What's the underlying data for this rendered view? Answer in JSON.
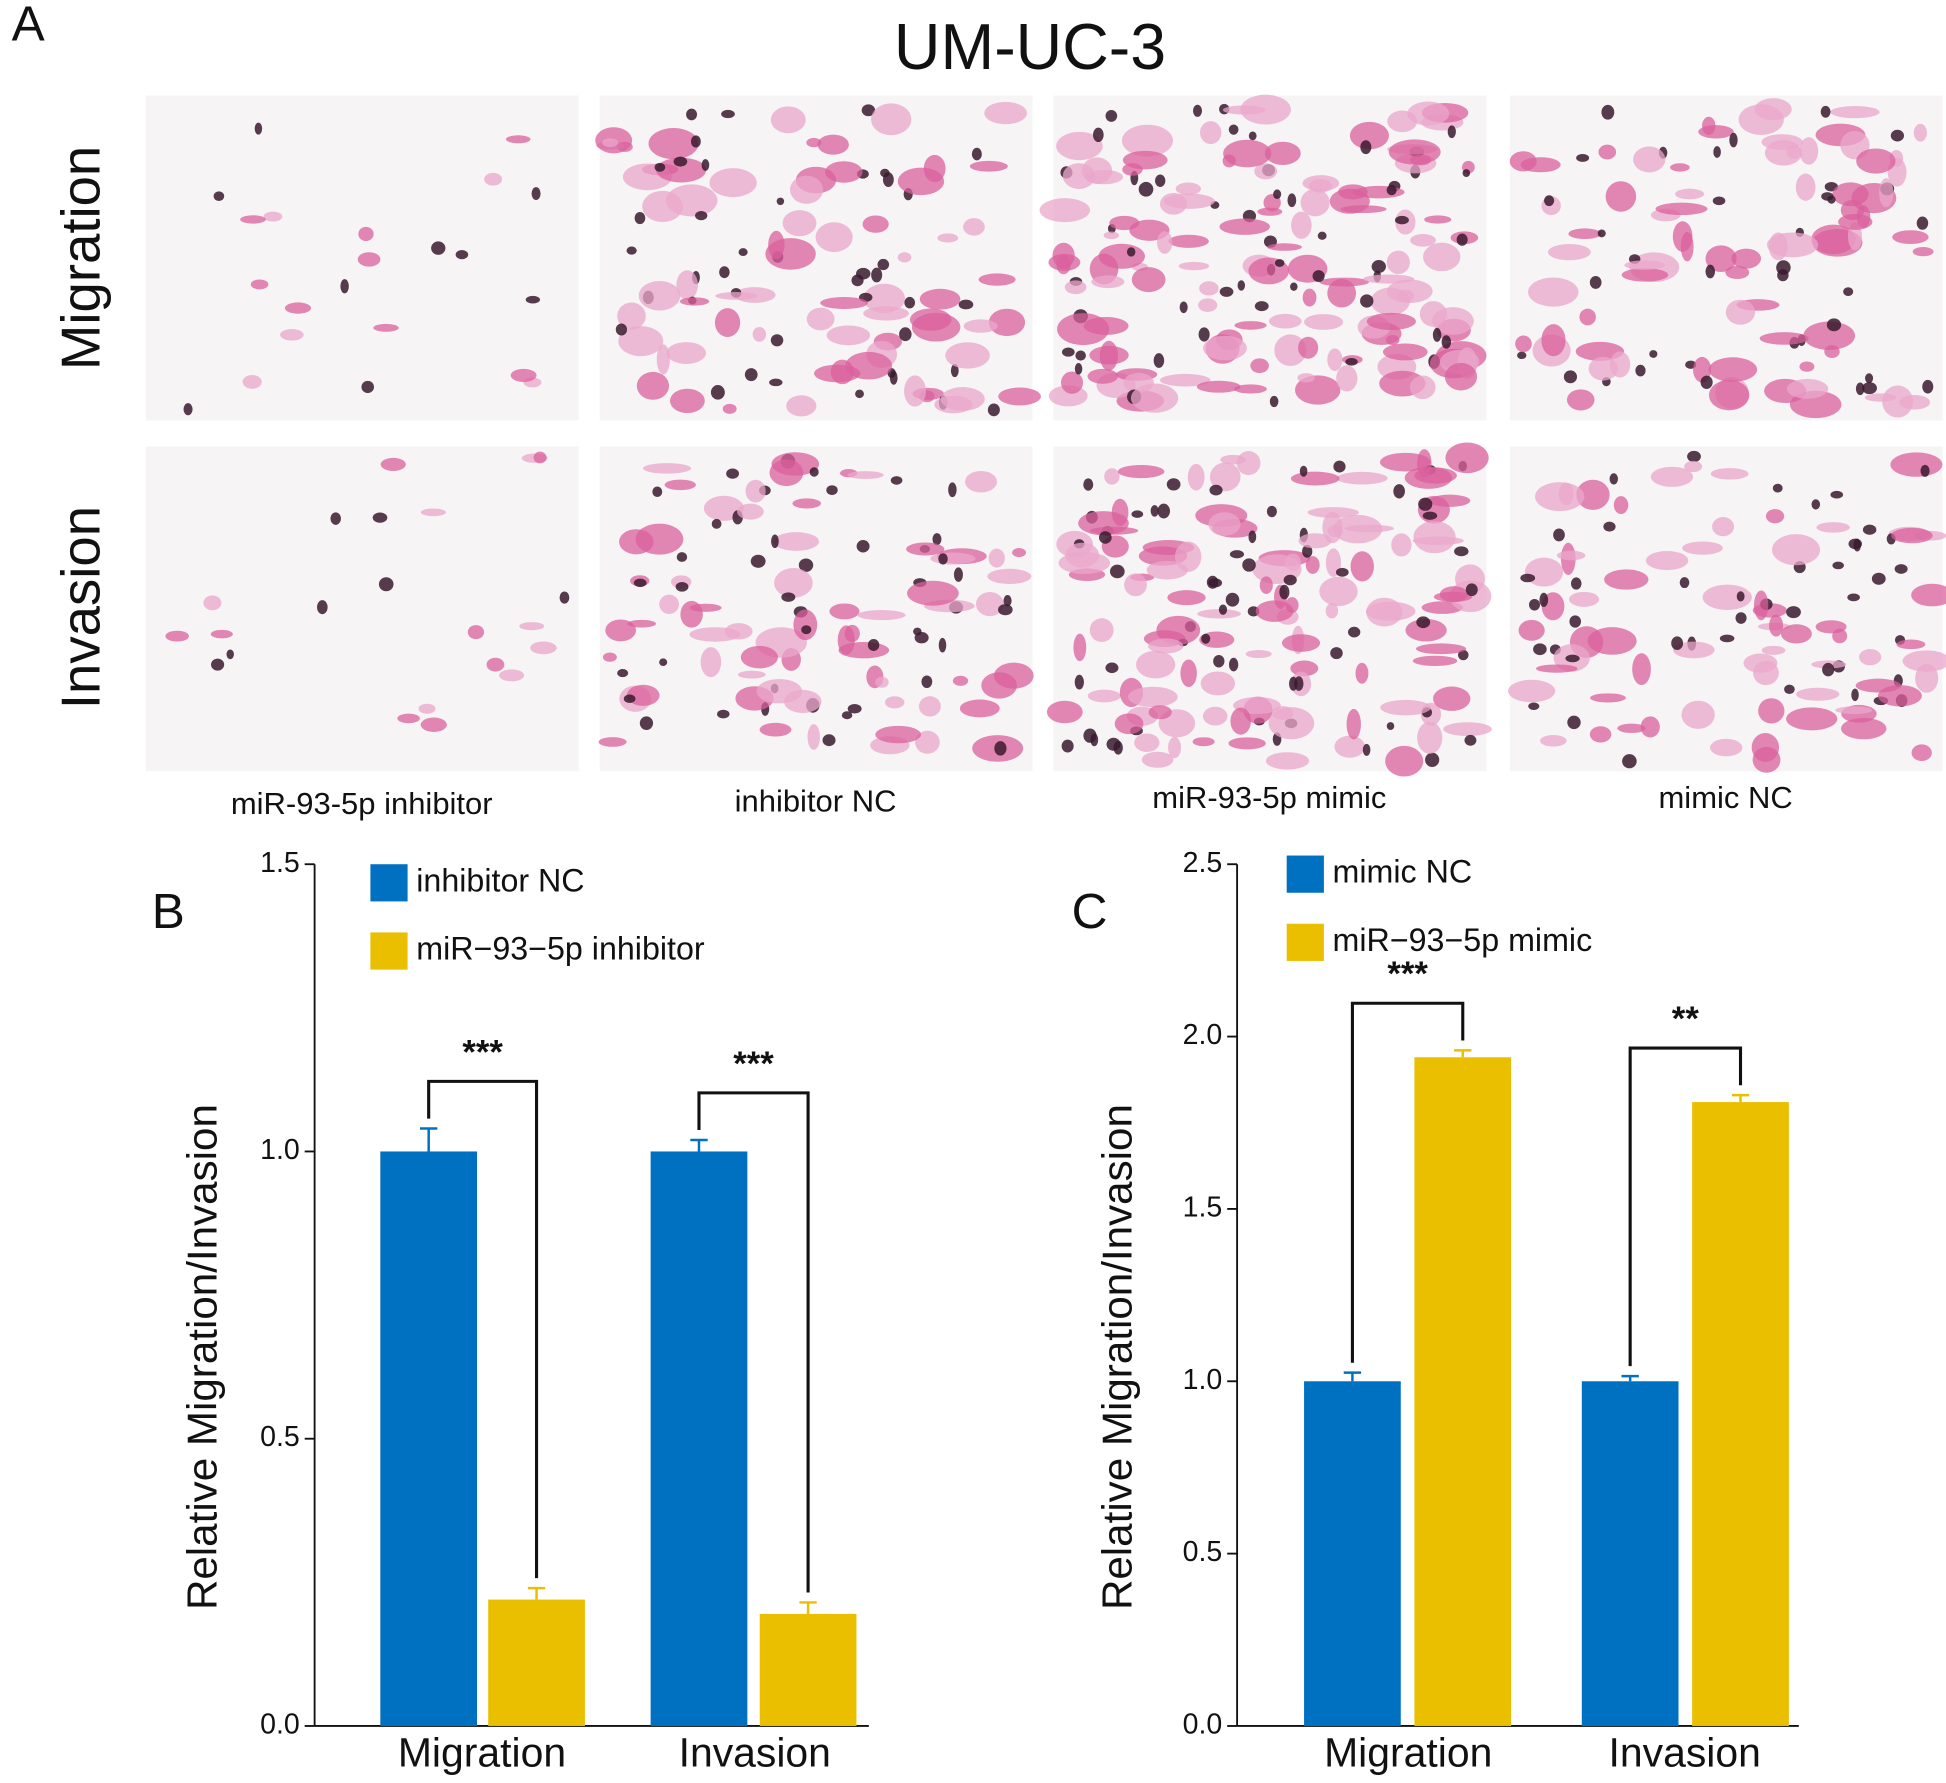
{
  "panel_a": {
    "letter": "A",
    "title": "UM-UC-3",
    "row_labels": [
      "Migration",
      "Invasion"
    ],
    "column_labels": [
      "miR-93-5p inhibitor",
      "inhibitor NC",
      "miR-93-5p mimic",
      "mimic NC"
    ]
  },
  "chart_data": [
    {
      "type": "bar",
      "panel": "B",
      "y_label": "Relative Migration/Invasion",
      "categories": [
        "Migration",
        "Invasion"
      ],
      "series": [
        {
          "name": "inhibitor NC",
          "color": "#0070c0",
          "values": [
            1.0,
            1.0
          ],
          "errors": [
            0.04,
            0.02
          ]
        },
        {
          "name": "miR−93−5p inhibitor",
          "color": "#eabf00",
          "values": [
            0.22,
            0.195
          ],
          "errors": [
            0.02,
            0.02
          ]
        }
      ],
      "significance": [
        "***",
        "***"
      ],
      "ylim": [
        0,
        1.5
      ],
      "yticks": [
        {
          "value": 0,
          "label": "0.0"
        },
        0.5,
        {
          "value": 1,
          "label": "1.0"
        },
        1.5
      ]
    },
    {
      "type": "bar",
      "panel": "C",
      "y_label": "Relative Migration/Invasion",
      "categories": [
        "Migration",
        "Invasion"
      ],
      "series": [
        {
          "name": "mimic NC",
          "color": "#0070c0",
          "values": [
            1.0,
            1.0
          ],
          "errors": [
            0.025,
            0.015
          ]
        },
        {
          "name": "miR−93−5p mimic",
          "color": "#eabf00",
          "values": [
            1.94,
            1.81
          ],
          "errors": [
            0.02,
            0.02
          ]
        }
      ],
      "significance": [
        "***",
        "**"
      ],
      "ylim": [
        0,
        2.5
      ],
      "yticks": [
        {
          "value": 0,
          "label": "0.0"
        },
        0.5,
        {
          "value": 1,
          "label": "1.0"
        },
        1.5,
        {
          "value": 2,
          "label": "2.0"
        },
        2.5
      ]
    }
  ]
}
